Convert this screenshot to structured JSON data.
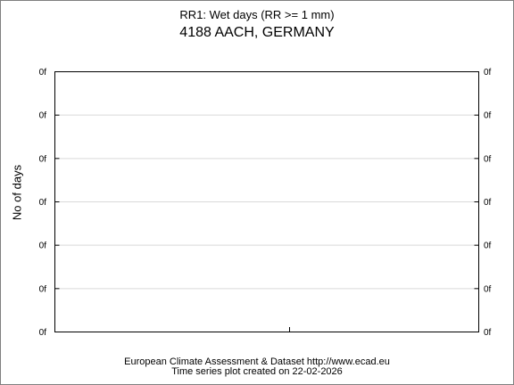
{
  "chart_data": {
    "type": "line",
    "title": "RR1: Wet days (RR >= 1 mm)",
    "subtitle": "4188 AACH, GERMANY",
    "ylabel": "No of days",
    "xlabel": "",
    "y_tick_labels": [
      "0f",
      "0f",
      "0f",
      "0f",
      "0f",
      "0f",
      "0f"
    ],
    "ylim": [
      0,
      6
    ],
    "grid": true,
    "series": []
  },
  "footer": {
    "line1": "European Climate Assessment & Dataset  http://www.ecad.eu",
    "line2": "Time series plot created on 22-02-2026"
  },
  "colors": {
    "gridline": "#d9d9d9",
    "axis": "#000000",
    "border": "#7f7f7f"
  }
}
